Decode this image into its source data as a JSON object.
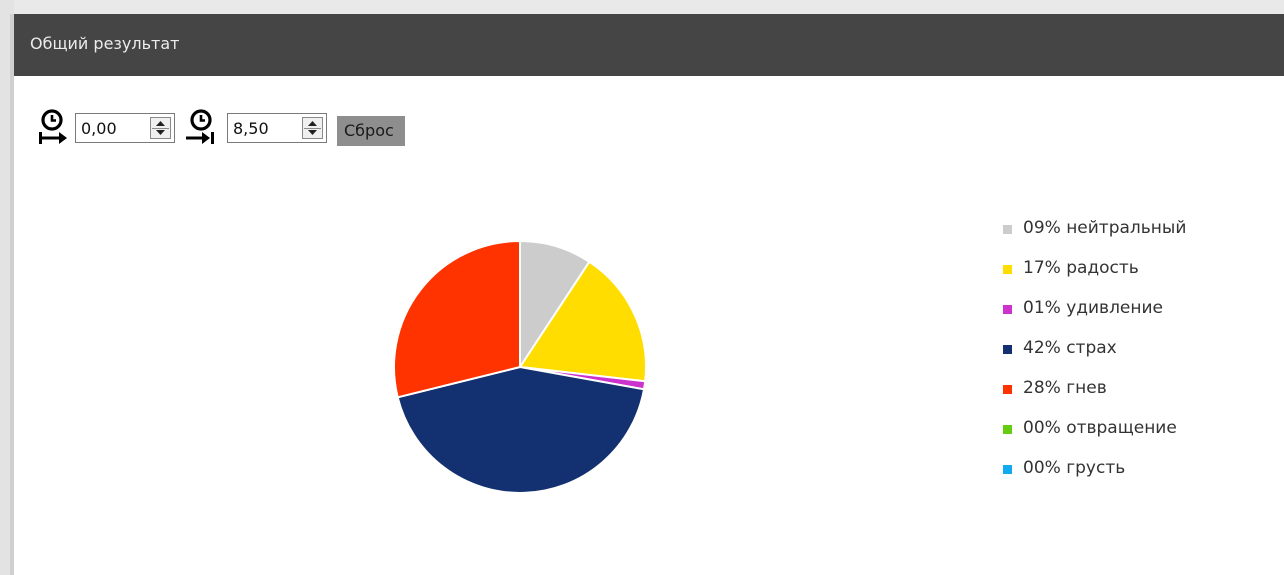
{
  "window": {
    "title": "Общий результат"
  },
  "controls": {
    "start_icon": "clock-start-icon",
    "start_value": "0,00",
    "end_icon": "clock-end-icon",
    "end_value": "8,50",
    "reset_label": "Сброс"
  },
  "chart_data": {
    "type": "pie",
    "title": "",
    "slices": [
      {
        "percent_label": "09%",
        "name": "нейтральный",
        "value": 9,
        "color": "#cccccc"
      },
      {
        "percent_label": "17%",
        "name": "радость",
        "value": 17,
        "color": "#ffdd00"
      },
      {
        "percent_label": "01%",
        "name": "удивление",
        "value": 1,
        "color": "#cc33cc"
      },
      {
        "percent_label": "42%",
        "name": "страх",
        "value": 42,
        "color": "#133170"
      },
      {
        "percent_label": "28%",
        "name": "гнев",
        "value": 28,
        "color": "#ff3300"
      },
      {
        "percent_label": "00%",
        "name": "отвращение",
        "value": 0,
        "color": "#66cc11"
      },
      {
        "percent_label": "00%",
        "name": "грусть",
        "value": 0,
        "color": "#11aaee"
      }
    ],
    "legend_position": "right"
  }
}
